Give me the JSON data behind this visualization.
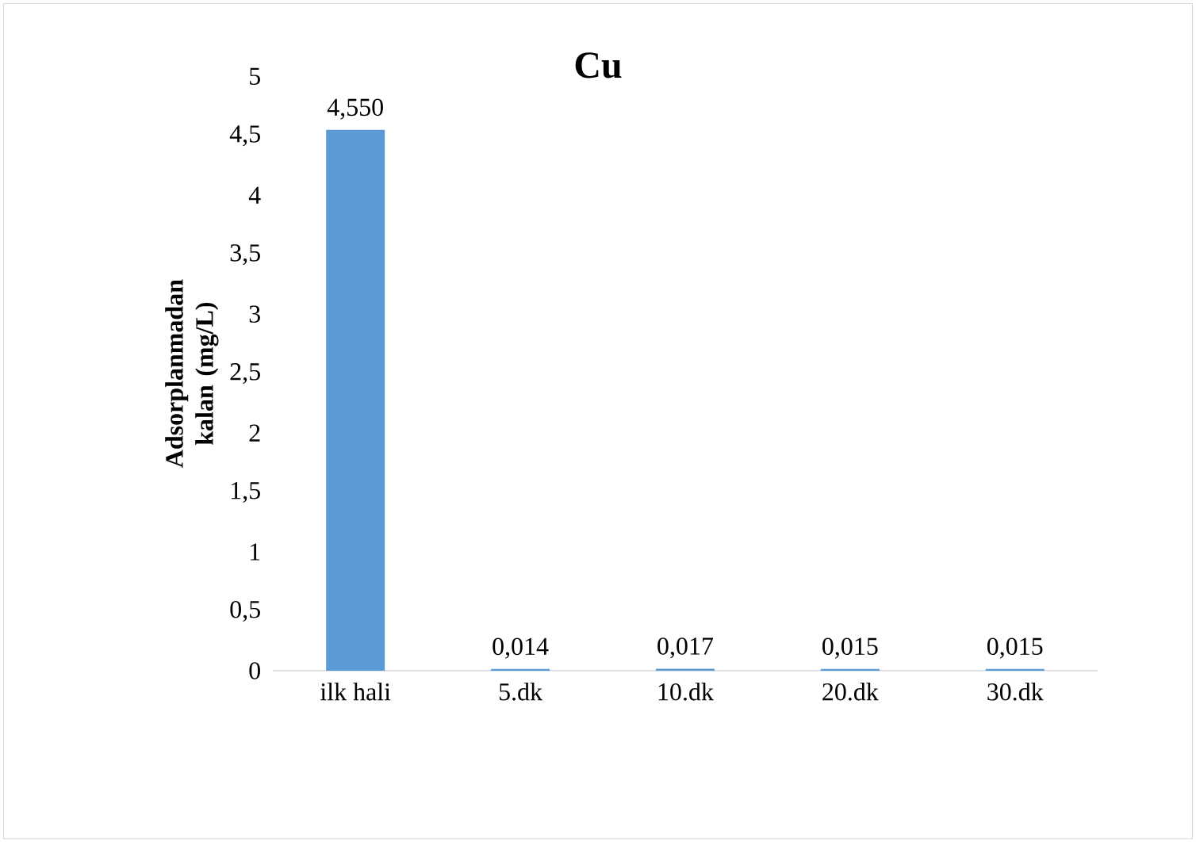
{
  "chart_data": {
    "type": "bar",
    "title": "Cu",
    "ylabel": "Adsorplanmadan kalan (mg/L)",
    "categories": [
      "ilk hali",
      "5.dk",
      "10.dk",
      "20.dk",
      "30.dk"
    ],
    "values": [
      4.55,
      0.014,
      0.017,
      0.015,
      0.015
    ],
    "value_labels": [
      "4,550",
      "0,014",
      "0,017",
      "0,015",
      "0,015"
    ],
    "color": "#5b9bd5",
    "ylim": [
      0,
      5
    ],
    "yticks": [
      0,
      {
        "value": 0.5,
        "label": "0,5"
      },
      1,
      {
        "value": 1.5,
        "label": "1,5"
      },
      2,
      {
        "value": 2.5,
        "label": "2,5"
      },
      3,
      {
        "value": 3.5,
        "label": "3,5"
      },
      4,
      {
        "value": 4.5,
        "label": "4,5"
      },
      5
    ],
    "grid": false
  }
}
